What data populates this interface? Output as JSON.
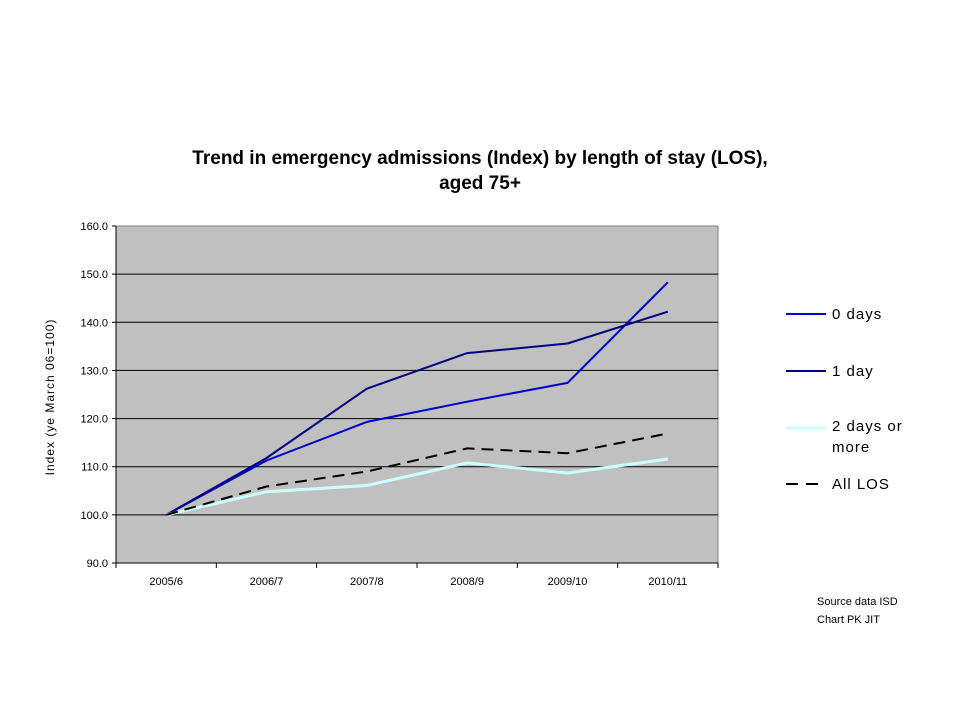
{
  "chart_data": {
    "type": "line",
    "title": [
      "Trend in emergency admissions (Index) by length of stay (LOS),",
      "aged 75+"
    ],
    "xlabel": "",
    "ylabel": "Index (ye March 06=100)",
    "categories": [
      "2005/6",
      "2006/7",
      "2007/8",
      "2008/9",
      "2009/10",
      "2010/11"
    ],
    "ylim": [
      90,
      160
    ],
    "yticks": [
      90,
      100,
      110,
      120,
      130,
      140,
      150,
      160
    ],
    "ytick_labels": [
      "90.0",
      "100.0",
      "110.0",
      "120.0",
      "130.0",
      "140.0",
      "150.0",
      "160.0"
    ],
    "grid": true,
    "legend_position": "right",
    "plot_background": "#c0c0c0",
    "series": [
      {
        "name": "0 days",
        "values": [
          100,
          111.3,
          119.3,
          123.5,
          127.4,
          148.3
        ],
        "color": "#0000cc",
        "dash": "solid"
      },
      {
        "name": "1 day",
        "values": [
          100,
          111.8,
          126.2,
          133.6,
          135.6,
          142.2
        ],
        "color": "#000080",
        "dash": "solid"
      },
      {
        "name": "2 days or more",
        "values": [
          100,
          104.8,
          106.1,
          110.8,
          108.7,
          111.6
        ],
        "color": "#ccffff",
        "dash": "solid"
      },
      {
        "name": "All LOS",
        "values": [
          100,
          105.9,
          109.0,
          113.8,
          112.8,
          116.9
        ],
        "color": "#000000",
        "dash": "dashed"
      }
    ],
    "annotations": [
      "Source data ISD",
      "Chart PK JIT"
    ]
  }
}
